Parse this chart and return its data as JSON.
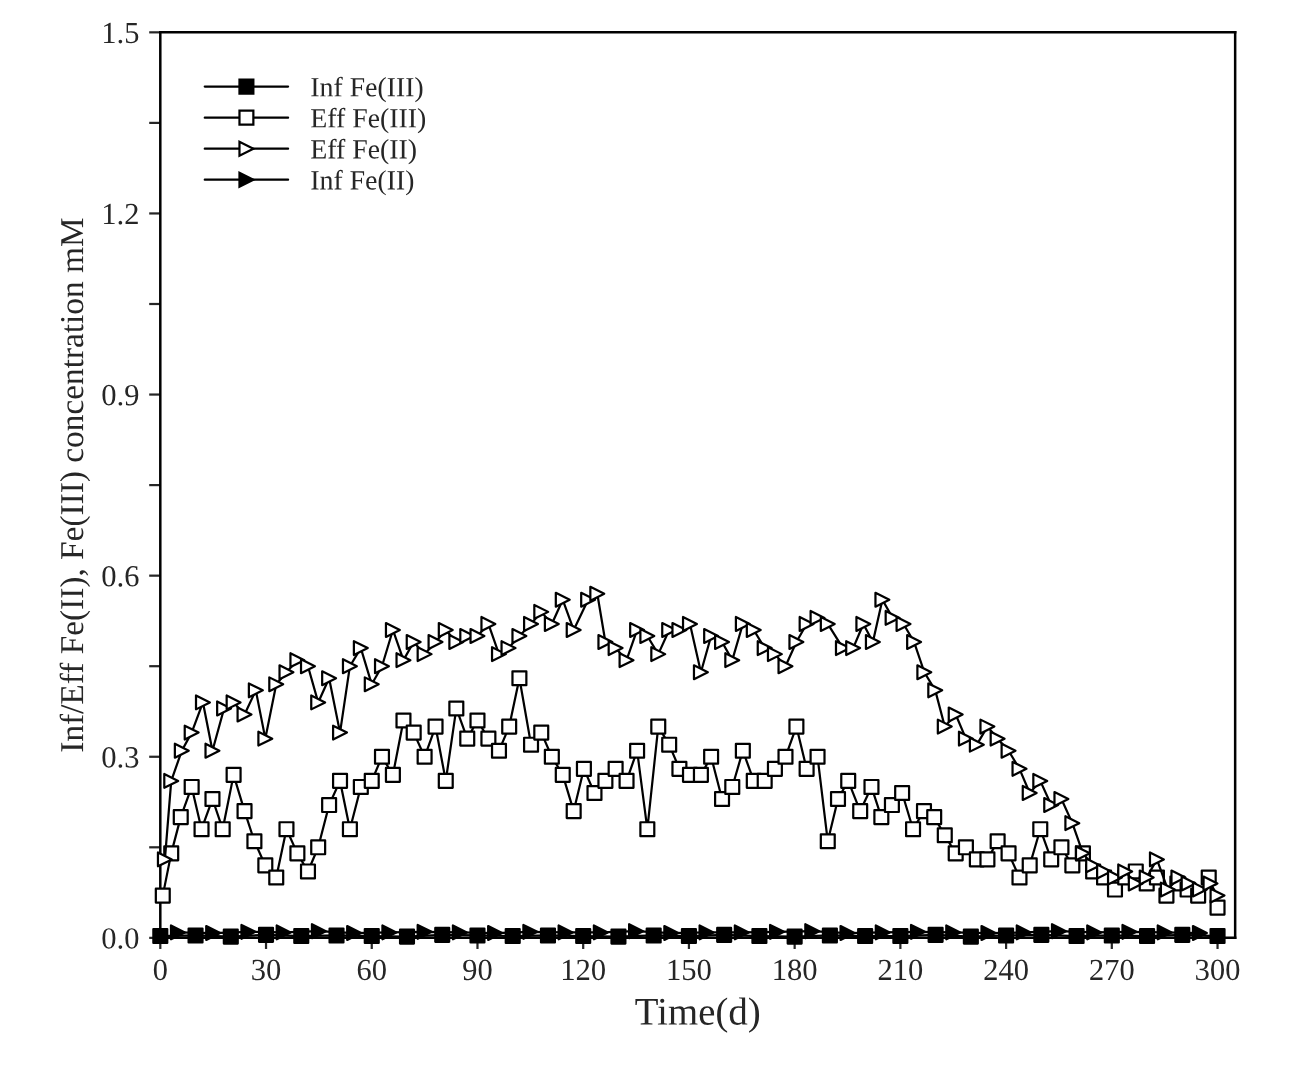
{
  "chart_data": {
    "type": "line",
    "xlabel": "Time(d)",
    "ylabel": "Inf/Eff Fe(II), Fe(III) concentration mM",
    "xlim": [
      0,
      305
    ],
    "xticks": [
      0,
      30,
      60,
      90,
      120,
      150,
      180,
      210,
      240,
      270,
      300
    ],
    "ylim": [
      0,
      1.5
    ],
    "yticks": [
      {
        "value": 0,
        "label": "0.0"
      },
      {
        "value": 0.15,
        "label": null
      },
      {
        "value": 0.3,
        "label": "0.3"
      },
      {
        "value": 0.45,
        "label": null
      },
      {
        "value": 0.6,
        "label": "0.6"
      },
      {
        "value": 0.75,
        "label": null
      },
      {
        "value": 0.9,
        "label": "0.9"
      },
      {
        "value": 1.05,
        "label": null
      },
      {
        "value": 1.2,
        "label": "1.2"
      },
      {
        "value": 1.35,
        "label": null
      },
      {
        "value": 1.5,
        "label": "1.5"
      }
    ],
    "legend": "top left",
    "grid": false,
    "series": [
      {
        "name": "Inf Fe(III)",
        "color": "#000000",
        "marker": "square",
        "line_style": "solid",
        "colors": [
          "#000000",
          "#000000",
          "#000000",
          "#000000",
          "#000000",
          "#000000",
          "#000000",
          "#000000",
          "#000000",
          "#000000",
          "#000000",
          "#000000",
          "#000000",
          "#000000",
          "#000000",
          "#000000",
          "#000000",
          "#000000",
          "#000000",
          "#000000",
          "#000000",
          "#000000",
          "#000000",
          "#000000",
          "#000000",
          "#000000",
          "#000000",
          "#000000",
          "#000000",
          "#000000",
          "#000000"
        ],
        "x": [
          0,
          10,
          20,
          30,
          40,
          50,
          60,
          70,
          80,
          90,
          100,
          110,
          120,
          130,
          140,
          150,
          160,
          170,
          180,
          190,
          200,
          210,
          220,
          230,
          240,
          250,
          260,
          270,
          280,
          290,
          300
        ],
        "values": [
          0.003,
          0.004,
          0.002,
          0.005,
          0.003,
          0.004,
          0.003,
          0.002,
          0.005,
          0.004,
          0.003,
          0.004,
          0.003,
          0.002,
          0.004,
          0.003,
          0.005,
          0.003,
          0.002,
          0.004,
          0.003,
          0.003,
          0.005,
          0.002,
          0.004,
          0.005,
          0.003,
          0.004,
          0.003,
          0.005,
          0.003
        ]
      },
      {
        "name": "Eff Fe(III)",
        "color": "#000000",
        "marker": "square",
        "line_style": "solid",
        "x": [
          0.7,
          3.1,
          5.8,
          8.9,
          11.7,
          14.8,
          17.7,
          20.8,
          23.9,
          26.7,
          29.8,
          32.9,
          35.8,
          38.9,
          41.9,
          44.8,
          47.9,
          51,
          53.8,
          56.9,
          60,
          62.9,
          66,
          69,
          71.9,
          75,
          78.1,
          81,
          84,
          87.1,
          90,
          93.1,
          96.1,
          99,
          101.9,
          105.2,
          108.1,
          111.1,
          114.2,
          117.3,
          120.2,
          123.2,
          126.3,
          129.2,
          132.3,
          135.3,
          138.2,
          141.3,
          144.4,
          147.3,
          150.3,
          153.4,
          156.3,
          159.4,
          162.3,
          165.3,
          168.4,
          171.5,
          174.4,
          177.4,
          180.5,
          183.4,
          186.5,
          189.4,
          192.3,
          195.2,
          198.6,
          201.8,
          204.6,
          207.6,
          210.5,
          213.6,
          216.7,
          219.6,
          222.6,
          225.7,
          228.6,
          231.7,
          234.7,
          237.6,
          240.7,
          243.8,
          246.7,
          249.7,
          252.8,
          255.7,
          258.8,
          261.8,
          264.7,
          267.8,
          270.9,
          273.8,
          276.8,
          279.9,
          282.8,
          285.5,
          288.6,
          291.5,
          294.5,
          297.5,
          300
        ],
        "values": [
          0.07,
          0.14,
          0.2,
          0.25,
          0.18,
          0.23,
          0.18,
          0.27,
          0.21,
          0.16,
          0.12,
          0.1,
          0.18,
          0.14,
          0.11,
          0.15,
          0.22,
          0.26,
          0.18,
          0.25,
          0.26,
          0.3,
          0.27,
          0.36,
          0.34,
          0.3,
          0.35,
          0.26,
          0.38,
          0.33,
          0.36,
          0.33,
          0.31,
          0.35,
          0.43,
          0.32,
          0.34,
          0.3,
          0.27,
          0.21,
          0.28,
          0.24,
          0.26,
          0.28,
          0.26,
          0.31,
          0.18,
          0.35,
          0.32,
          0.28,
          0.27,
          0.27,
          0.3,
          0.23,
          0.25,
          0.31,
          0.26,
          0.26,
          0.28,
          0.3,
          0.35,
          0.28,
          0.3,
          0.16,
          0.23,
          0.26,
          0.21,
          0.25,
          0.2,
          0.22,
          0.24,
          0.18,
          0.21,
          0.2,
          0.17,
          0.14,
          0.15,
          0.13,
          0.13,
          0.16,
          0.14,
          0.1,
          0.12,
          0.18,
          0.13,
          0.15,
          0.12,
          0.14,
          0.11,
          0.1,
          0.08,
          0.1,
          0.11,
          0.09,
          0.1,
          0.07,
          0.09,
          0.08,
          0.07,
          0.1,
          0.05
        ]
      },
      {
        "name": "Eff Fe(II)",
        "color": "#000000",
        "marker": "triangle",
        "line_style": "solid",
        "x": [
          1.3,
          3.1,
          6.1,
          8.9,
          12.1,
          14.8,
          18.1,
          20.8,
          23.9,
          27.1,
          29.8,
          32.9,
          35.8,
          38.9,
          41.9,
          44.8,
          47.9,
          51,
          53.8,
          56.9,
          60,
          62.9,
          66,
          69,
          71.9,
          75,
          78.1,
          81,
          84,
          87.1,
          90,
          93.1,
          96.1,
          98.8,
          101.9,
          105.2,
          108.1,
          111.1,
          114.2,
          117.3,
          121.4,
          124,
          126.3,
          129.2,
          132.3,
          135.3,
          138.2,
          141.3,
          144.4,
          147.3,
          150.3,
          153.4,
          156.3,
          159.4,
          162.3,
          165.3,
          168.4,
          171.5,
          174.4,
          177.4,
          180.5,
          183.4,
          186.5,
          189.4,
          193.7,
          196.6,
          199.5,
          202.2,
          204.9,
          207.8,
          210.9,
          213.9,
          216.8,
          219.9,
          222.6,
          225.7,
          228.6,
          231.7,
          234.7,
          237.6,
          240.7,
          243.8,
          246.7,
          249.7,
          252.8,
          255.7,
          258.8,
          261.8,
          264.7,
          267.8,
          270.9,
          273.8,
          276.8,
          279.9,
          282.8,
          285.9,
          288.9,
          291.8,
          295,
          298,
          300
        ],
        "values": [
          0.13,
          0.26,
          0.31,
          0.34,
          0.39,
          0.31,
          0.38,
          0.39,
          0.37,
          0.41,
          0.33,
          0.42,
          0.44,
          0.46,
          0.45,
          0.39,
          0.43,
          0.34,
          0.45,
          0.48,
          0.42,
          0.45,
          0.51,
          0.46,
          0.49,
          0.47,
          0.49,
          0.51,
          0.49,
          0.5,
          0.5,
          0.52,
          0.47,
          0.48,
          0.5,
          0.52,
          0.54,
          0.52,
          0.56,
          0.51,
          0.56,
          0.57,
          0.49,
          0.48,
          0.46,
          0.51,
          0.5,
          0.47,
          0.51,
          0.51,
          0.52,
          0.44,
          0.5,
          0.49,
          0.46,
          0.52,
          0.51,
          0.48,
          0.47,
          0.45,
          0.49,
          0.52,
          0.53,
          0.52,
          0.48,
          0.48,
          0.52,
          0.49,
          0.56,
          0.53,
          0.52,
          0.49,
          0.44,
          0.41,
          0.35,
          0.37,
          0.33,
          0.32,
          0.35,
          0.33,
          0.31,
          0.28,
          0.24,
          0.26,
          0.22,
          0.23,
          0.19,
          0.14,
          0.12,
          0.11,
          0.1,
          0.11,
          0.09,
          0.1,
          0.13,
          0.08,
          0.1,
          0.09,
          0.08,
          0.09,
          0.07
        ]
      },
      {
        "name": "Inf Fe(II)",
        "color": "#000000",
        "marker": "triangle",
        "line_style": "solid",
        "colors": [
          "#000000",
          "#000000",
          "#000000",
          "#000000",
          "#000000",
          "#000000",
          "#000000",
          "#000000",
          "#000000",
          "#000000",
          "#000000",
          "#000000",
          "#000000",
          "#000000",
          "#000000",
          "#000000",
          "#000000",
          "#000000",
          "#000000",
          "#000000",
          "#000000",
          "#000000",
          "#000000",
          "#000000",
          "#000000",
          "#000000",
          "#000000",
          "#000000",
          "#000000",
          "#000000"
        ],
        "x": [
          5,
          15,
          25,
          35,
          45,
          55,
          65,
          75,
          85,
          95,
          105,
          115,
          125,
          135,
          145,
          155,
          165,
          175,
          185,
          195,
          205,
          215,
          225,
          235,
          245,
          255,
          265,
          275,
          285,
          295
        ],
        "values": [
          0.009,
          0.008,
          0.01,
          0.009,
          0.011,
          0.008,
          0.009,
          0.01,
          0.009,
          0.008,
          0.01,
          0.009,
          0.009,
          0.011,
          0.008,
          0.009,
          0.009,
          0.01,
          0.011,
          0.008,
          0.009,
          0.01,
          0.009,
          0.008,
          0.009,
          0.011,
          0.009,
          0.01,
          0.009,
          0.008
        ]
      }
    ]
  }
}
